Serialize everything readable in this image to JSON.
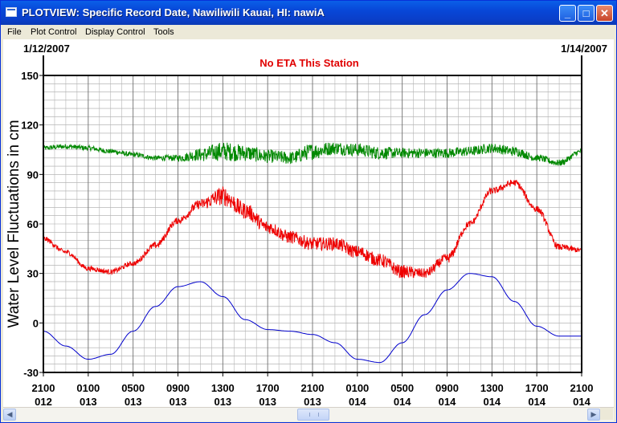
{
  "window": {
    "title": "PLOTVIEW: Specific Record Date, Nawiliwili Kauai, HI: nawiA"
  },
  "menu": {
    "items": [
      "File",
      "Plot Control",
      "Display Control",
      "Tools"
    ]
  },
  "plot": {
    "start_date": "1/12/2007",
    "end_date": "1/14/2007",
    "annotation": "No ETA This Station"
  },
  "chart_data": {
    "type": "line",
    "ylabel": "Water Level Fluctuations in cm",
    "ylim": [
      -30,
      150
    ],
    "yticks": [
      150,
      120,
      90,
      60,
      30,
      0,
      -30
    ],
    "x_tick_labels": [
      [
        "2100",
        "012"
      ],
      [
        "0100",
        "013"
      ],
      [
        "0500",
        "013"
      ],
      [
        "0900",
        "013"
      ],
      [
        "1300",
        "013"
      ],
      [
        "1700",
        "013"
      ],
      [
        "2100",
        "013"
      ],
      [
        "0100",
        "014"
      ],
      [
        "0500",
        "014"
      ],
      [
        "0900",
        "014"
      ],
      [
        "1300",
        "014"
      ],
      [
        "1700",
        "014"
      ],
      [
        "2100",
        "014"
      ]
    ],
    "x_hours": [
      0,
      4,
      8,
      12,
      16,
      20,
      24,
      28,
      32,
      36,
      40,
      44,
      48
    ],
    "grid": true,
    "series": [
      {
        "color": "#008800",
        "x": [
          0,
          2,
          4,
          6,
          8,
          10,
          12,
          14,
          16,
          18,
          20,
          22,
          24,
          26,
          28,
          30,
          32,
          34,
          36,
          38,
          40,
          42,
          44,
          46,
          48
        ],
        "y": [
          106,
          107,
          106,
          104,
          102,
          100,
          100,
          102,
          104,
          103,
          101,
          100,
          104,
          106,
          105,
          103,
          103,
          103,
          103,
          104,
          106,
          104,
          100,
          97,
          104
        ],
        "noise": [
          1.5,
          1.5,
          1.5,
          1.5,
          1.5,
          1.5,
          2,
          4,
          6,
          5,
          4,
          4,
          5,
          4,
          4,
          4,
          3,
          3,
          3,
          3,
          3,
          3,
          2,
          2,
          1.5
        ]
      },
      {
        "color": "#ee0000",
        "x": [
          0,
          2,
          4,
          6,
          8,
          10,
          12,
          14,
          16,
          18,
          20,
          22,
          24,
          26,
          28,
          30,
          32,
          34,
          36,
          38,
          40,
          42,
          44,
          46,
          48
        ],
        "y": [
          51,
          43,
          33,
          31,
          36,
          47,
          62,
          72,
          77,
          68,
          58,
          52,
          48,
          48,
          43,
          38,
          31,
          30,
          39,
          60,
          80,
          85,
          69,
          46,
          44
        ],
        "noise": [
          1.5,
          1.5,
          1.5,
          1.5,
          1.5,
          2,
          2,
          3,
          6,
          5,
          4,
          4,
          4,
          4,
          4,
          4,
          4,
          3,
          3,
          2,
          2,
          2,
          2,
          2,
          1.5
        ]
      },
      {
        "color": "#0000cc",
        "x": [
          0,
          2,
          4,
          6,
          8,
          10,
          12,
          14,
          16,
          18,
          20,
          22,
          24,
          26,
          28,
          30,
          32,
          34,
          36,
          38,
          40,
          42,
          44,
          46,
          48
        ],
        "y": [
          -5,
          -14,
          -22,
          -19,
          -5,
          10,
          22,
          25,
          16,
          2,
          -4,
          -5,
          -7,
          -12,
          -22,
          -24,
          -12,
          5,
          20,
          30,
          28,
          13,
          -2,
          -8,
          -8
        ],
        "noise": [
          0,
          0,
          0,
          0,
          0,
          0,
          0,
          0,
          0,
          0,
          0,
          0,
          0,
          0,
          0,
          0,
          0,
          0,
          0,
          0,
          0,
          0,
          0,
          0,
          0
        ]
      }
    ]
  }
}
